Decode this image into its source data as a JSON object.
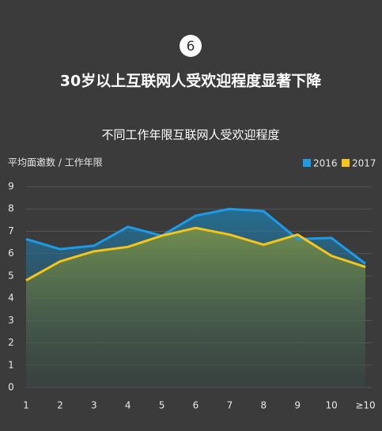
{
  "badge": "6",
  "chart_data": {
    "type": "line",
    "title": "30岁以上互联网人受欢迎程度显著下降",
    "subtitle": "不同工作年限互联网人受欢迎程度",
    "y_label": "平均面邀数 / 工作年限",
    "categories": [
      "1",
      "2",
      "3",
      "4",
      "5",
      "6",
      "7",
      "8",
      "9",
      "10",
      "≥10"
    ],
    "series": [
      {
        "name": "2016",
        "color": "#1e9be6",
        "values": [
          6.65,
          6.2,
          6.35,
          7.2,
          6.8,
          7.7,
          8.0,
          7.9,
          6.65,
          6.7,
          5.55
        ]
      },
      {
        "name": "2017",
        "color": "#f5c518",
        "values": [
          4.8,
          5.65,
          6.1,
          6.3,
          6.8,
          7.15,
          6.85,
          6.4,
          6.85,
          5.9,
          5.4
        ]
      }
    ],
    "ylim": [
      0,
      9
    ],
    "yticks": [
      0,
      1,
      2,
      3,
      4,
      5,
      6,
      7,
      8,
      9
    ],
    "grid": true,
    "legend": "top-right"
  }
}
